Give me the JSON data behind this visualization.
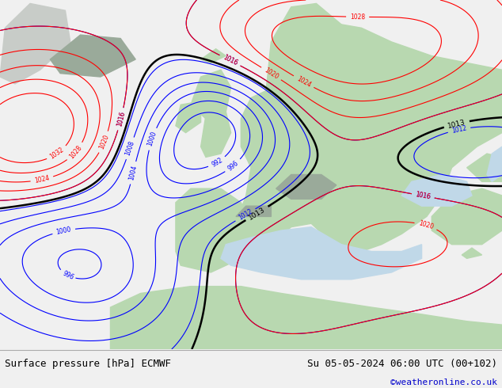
{
  "footer_left": "Surface pressure [hPa] ECMWF",
  "footer_right": "Su 05-05-2024 06:00 UTC (00+102)",
  "footer_credit": "©weatheronline.co.uk",
  "fig_width": 6.34,
  "fig_height": 4.9,
  "dpi": 100,
  "land_color": "#b8d8b0",
  "gray_color": "#9aaa9a",
  "ocean_color": "#c0d8e8",
  "footer_bg": "#f0f0f0"
}
